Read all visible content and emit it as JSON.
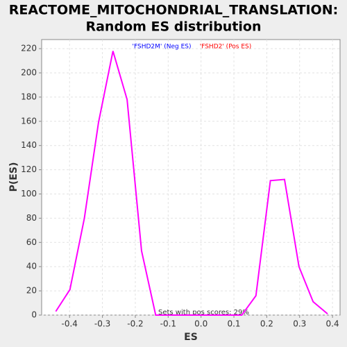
{
  "chart_data": {
    "type": "line",
    "title": [
      "REACTOME_MITOCHONDRIAL_TRANSLATION:",
      "Random ES distribution"
    ],
    "x_label": "ES",
    "y_label": "P(ES)",
    "legend": [
      {
        "name": "'FSHD2M' (Neg ES)",
        "color": "#0000ff"
      },
      {
        "name": "'FSHD2' (Pos ES)",
        "color": "#ff0000"
      }
    ],
    "annotation": "Sets with pos scores: 29%",
    "x": [
      -0.442,
      -0.399,
      -0.355,
      -0.312,
      -0.268,
      -0.225,
      -0.181,
      -0.138,
      -0.094,
      -0.051,
      -0.007,
      0.037,
      0.08,
      0.124,
      0.167,
      0.211,
      0.254,
      0.298,
      0.341,
      0.385
    ],
    "series": [
      {
        "color": "#ff00ff",
        "values": [
          3,
          21,
          80,
          159,
          218,
          178,
          53,
          0,
          0,
          0,
          0,
          0,
          0,
          0,
          16,
          111,
          112,
          40,
          11,
          1
        ]
      }
    ],
    "xlim": [
      -0.485,
      0.423
    ],
    "ylim": [
      0,
      227.5
    ],
    "xticks": [
      -0.4,
      -0.3,
      -0.2,
      -0.1,
      {
        "value": 0,
        "label": "0.0"
      },
      0.1,
      0.2,
      0.3,
      0.4
    ],
    "yticks": [
      0,
      20,
      40,
      60,
      80,
      100,
      120,
      140,
      160,
      180,
      200,
      220
    ],
    "grid": true
  }
}
